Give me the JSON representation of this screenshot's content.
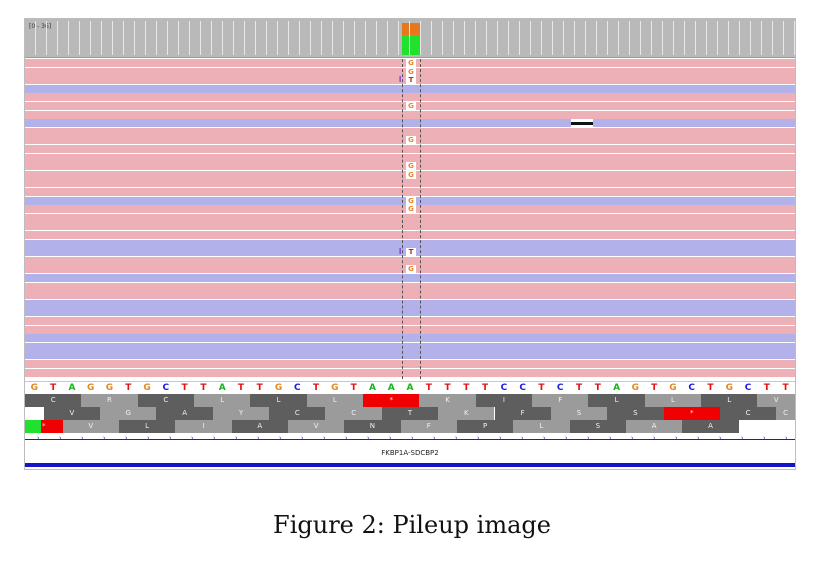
{
  "coverage": {
    "range_label": "[0 - 36]",
    "bar_colors": {
      "top": "#e5771e",
      "bottom": "#22e02e"
    }
  },
  "colors": {
    "forward_read": "#eeb0b7",
    "reverse_read": "#b3b1ea",
    "mismatch_G": "#e98525",
    "mismatch_T": "#d61a1a",
    "insertion": "#6a2cd6",
    "stop_codon": "#f00000",
    "start_codon": "#22e02e",
    "aa_dark": "#5e5e5e",
    "aa_light": "#9b9b9b"
  },
  "reads": {
    "strands": [
      "F",
      "F",
      "F",
      "R",
      "F",
      "F",
      "F",
      "R",
      "F",
      "F",
      "F",
      "F",
      "F",
      "F",
      "F",
      "F",
      "R",
      "F",
      "F",
      "F",
      "F",
      "R",
      "R",
      "F",
      "F",
      "R",
      "F",
      "F",
      "R",
      "R",
      "F",
      "F",
      "R",
      "R",
      "R",
      "F",
      "F"
    ],
    "mismatches": [
      {
        "row": 0,
        "base": "G"
      },
      {
        "row": 1,
        "base": "G"
      },
      {
        "row": 2,
        "base": "T",
        "insertion": "I"
      },
      {
        "row": 5,
        "base": "G"
      },
      {
        "row": 9,
        "base": "G"
      },
      {
        "row": 12,
        "base": "G"
      },
      {
        "row": 13,
        "base": "G"
      },
      {
        "row": 16,
        "base": "G"
      },
      {
        "row": 17,
        "base": "G"
      },
      {
        "row": 22,
        "base": "T",
        "insertion": "I"
      },
      {
        "row": 24,
        "base": "G"
      }
    ],
    "deletion_row": 7
  },
  "sequence": {
    "bases": [
      "G",
      "T",
      "A",
      "G",
      "G",
      "T",
      "G",
      "C",
      "T",
      "T",
      "A",
      "T",
      "T",
      "G",
      "C",
      "T",
      "G",
      "T",
      "A",
      "A",
      "A",
      "T",
      "T",
      "T",
      "T",
      "C",
      "C",
      "T",
      "C",
      "T",
      "T",
      "A",
      "G",
      "T",
      "G",
      "C",
      "T",
      "G",
      "C",
      "T",
      "T"
    ],
    "colors": {
      "A": "#13b713",
      "C": "#1a1ae0",
      "G": "#e0891e",
      "T": "#e01414"
    }
  },
  "translation": {
    "frames": [
      [
        "C",
        "R",
        "C",
        "L",
        "L",
        "L",
        "*",
        "K",
        "I",
        "F",
        "L",
        "L",
        "L",
        "V",
        "L",
        "L"
      ],
      [
        "V",
        "G",
        "A",
        "Y",
        "C",
        "C",
        "T",
        "K",
        "F",
        "S",
        "S",
        "*",
        "C",
        "C",
        "F"
      ],
      [
        "*",
        "V",
        "L",
        "I",
        "A",
        "V",
        "N",
        "F",
        "P",
        "L",
        "S",
        "A",
        "A"
      ]
    ]
  },
  "gene": {
    "name": "FKBP1A-SDCBP2"
  },
  "caption": "Figure 2: Pileup image"
}
